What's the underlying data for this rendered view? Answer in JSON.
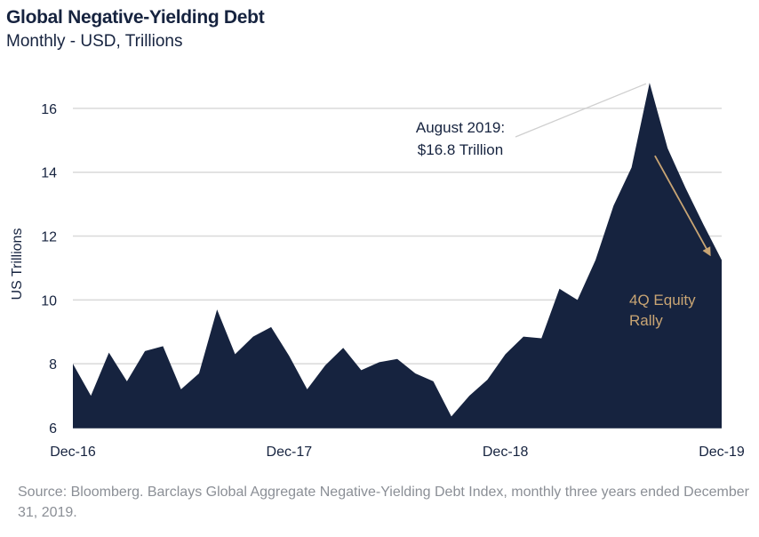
{
  "header": {
    "title": "Global Negative-Yielding Debt",
    "subtitle": "Monthly - USD, Trillions"
  },
  "footer": {
    "source": "Source: Bloomberg. Barclays Global Aggregate Negative-Yielding Debt Index, monthly three years ended December 31, 2019."
  },
  "colors": {
    "area": "#16233f",
    "grid": "#d9d9d9",
    "callout_line": "#cfcfcf",
    "arrow": "#c9a574"
  },
  "chart_data": {
    "type": "area",
    "title": "Global Negative-Yielding Debt",
    "subtitle": "Monthly - USD, Trillions",
    "xlabel": "",
    "ylabel": "US Trillions",
    "ylim": [
      6,
      17
    ],
    "yticks": [
      6,
      8,
      10,
      12,
      14,
      16
    ],
    "grid": true,
    "legend": "none",
    "x": [
      "2016-12",
      "2017-01",
      "2017-02",
      "2017-03",
      "2017-04",
      "2017-05",
      "2017-06",
      "2017-07",
      "2017-08",
      "2017-09",
      "2017-10",
      "2017-11",
      "2017-12",
      "2018-01",
      "2018-02",
      "2018-03",
      "2018-04",
      "2018-05",
      "2018-06",
      "2018-07",
      "2018-08",
      "2018-09",
      "2018-10",
      "2018-11",
      "2018-12",
      "2019-01",
      "2019-02",
      "2019-03",
      "2019-04",
      "2019-05",
      "2019-06",
      "2019-07",
      "2019-08",
      "2019-09",
      "2019-10",
      "2019-11",
      "2019-12"
    ],
    "xtick_labels": [
      {
        "index": 0,
        "label": "Dec-16"
      },
      {
        "index": 12,
        "label": "Dec-17"
      },
      {
        "index": 24,
        "label": "Dec-18"
      },
      {
        "index": 36,
        "label": "Dec-19"
      }
    ],
    "series": [
      {
        "values": [
          8.0,
          7.0,
          8.35,
          7.45,
          8.4,
          8.55,
          7.2,
          7.7,
          9.7,
          8.3,
          8.85,
          9.15,
          8.25,
          7.2,
          7.95,
          8.5,
          7.8,
          8.05,
          8.15,
          7.7,
          7.45,
          6.35,
          7.0,
          7.5,
          8.3,
          8.85,
          8.8,
          10.35,
          10.0,
          11.25,
          12.95,
          14.15,
          16.8,
          14.75,
          13.5,
          12.35,
          11.25
        ]
      }
    ],
    "annotations": [
      {
        "text_lines": [
          "August 2019:",
          "$16.8 Trillion"
        ],
        "target_index": 32
      },
      {
        "text_lines": [
          "4Q Equity",
          "Rally"
        ],
        "arrow_from_index": 32,
        "arrow_to_index": 35
      }
    ]
  }
}
